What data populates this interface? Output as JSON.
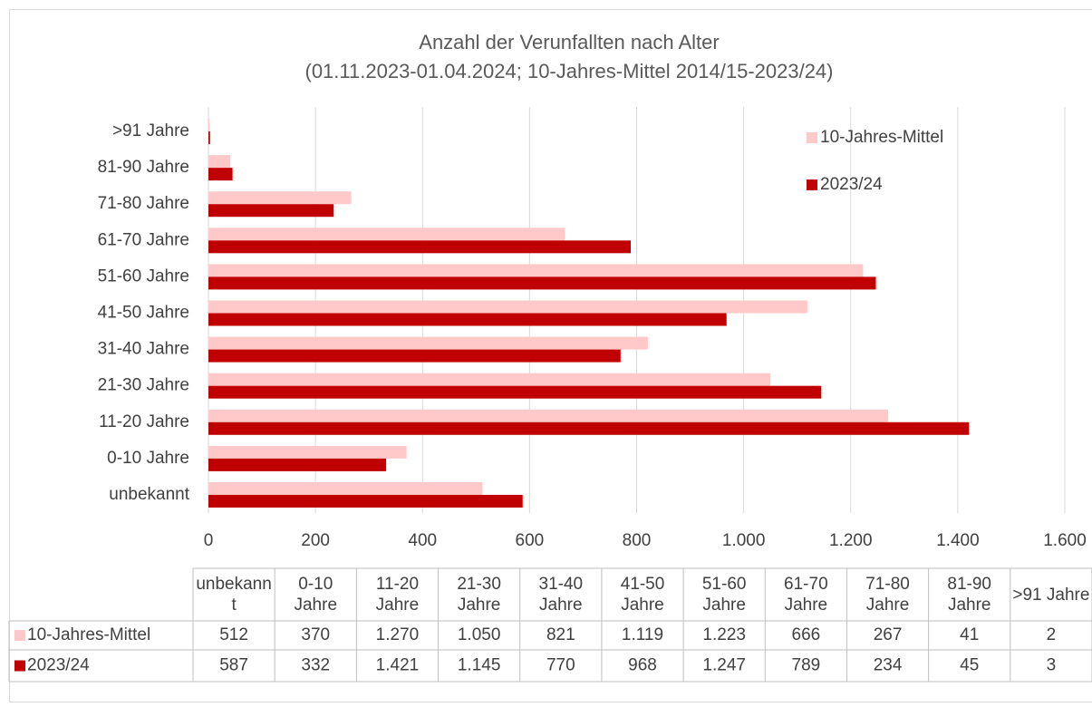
{
  "chart_data": {
    "type": "barh",
    "title": "Anzahl der Verunfallten nach Alter",
    "subtitle": "(01.11.2023-01.04.2024; 10-Jahres-Mittel 2014/15-2023/24)",
    "categories": [
      "unbekannt",
      "0-10 Jahre",
      "11-20 Jahre",
      "21-30 Jahre",
      "31-40 Jahre",
      "41-50 Jahre",
      "51-60 Jahre",
      "61-70 Jahre",
      "71-80 Jahre",
      "81-90 Jahre",
      ">91 Jahre"
    ],
    "series": [
      {
        "name": "10-Jahres-Mittel",
        "color": "#ffc9c9",
        "values": [
          512,
          370,
          1270,
          1050,
          821,
          1119,
          1223,
          666,
          267,
          41,
          2
        ],
        "value_labels": [
          "512",
          "370",
          "1.270",
          "1.050",
          "821",
          "1.119",
          "1.223",
          "666",
          "267",
          "41",
          "2"
        ]
      },
      {
        "name": "2023/24",
        "color": "#c00000",
        "values": [
          587,
          332,
          1421,
          1145,
          770,
          968,
          1247,
          789,
          234,
          45,
          3
        ],
        "value_labels": [
          "587",
          "332",
          "1.421",
          "1.145",
          "770",
          "968",
          "1.247",
          "789",
          "234",
          "45",
          "3"
        ]
      }
    ],
    "xlim": [
      0,
      1600
    ],
    "xticks": [
      0,
      200,
      400,
      600,
      800,
      {
        "value": 1000,
        "label": "1.000"
      },
      {
        "value": 1200,
        "label": "1.200"
      },
      {
        "value": 1400,
        "label": "1.400"
      },
      {
        "value": 1600,
        "label": "1.600"
      }
    ],
    "grid": true,
    "legend": "upper right",
    "data_table": true
  }
}
